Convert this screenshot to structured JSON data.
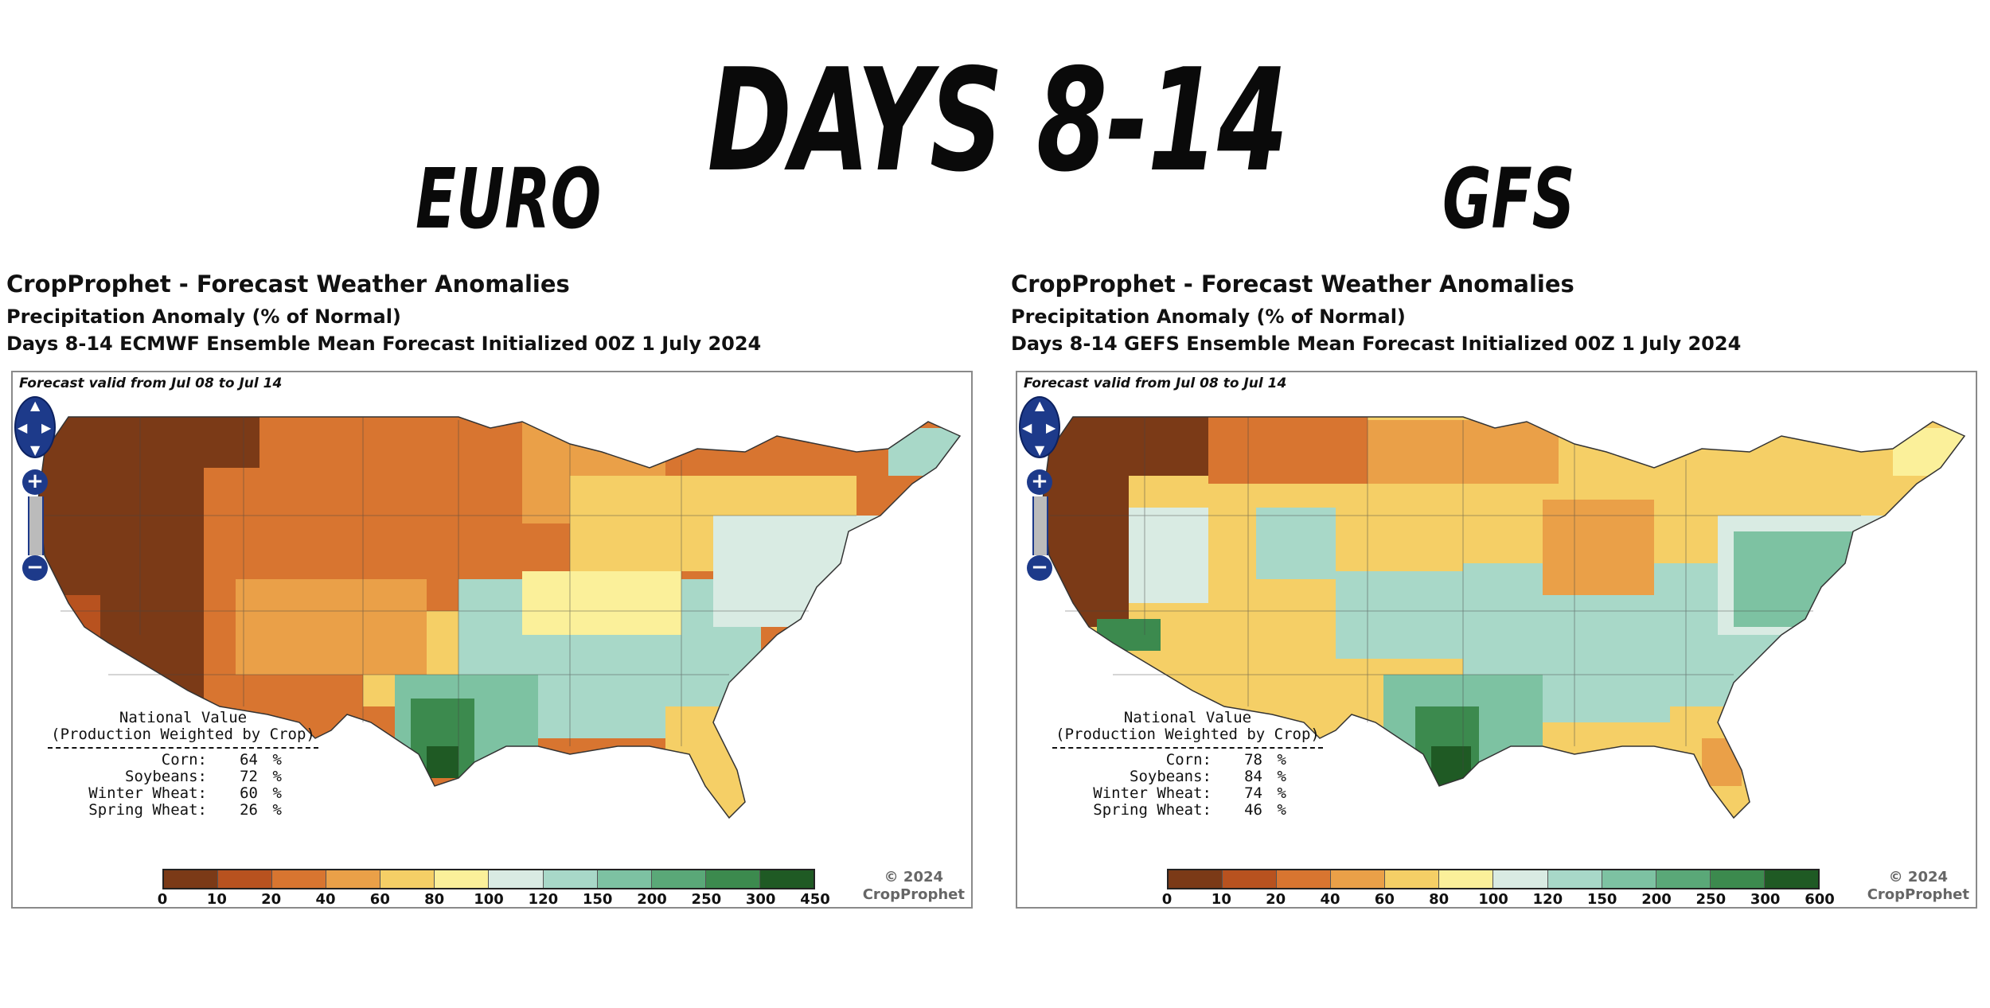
{
  "headline": "DAYS 8-14",
  "labels": {
    "left": "EURO",
    "right": "GFS"
  },
  "colors": {
    "scale": [
      "#7b3a17",
      "#b8521f",
      "#d87530",
      "#eaa048",
      "#f5cf66",
      "#fbf09a",
      "#d9ebe3",
      "#a8d8c8",
      "#7dc2a2",
      "#5aa878",
      "#3c8a4e",
      "#1f5a24"
    ]
  },
  "panels": [
    {
      "id": "euro",
      "title": "CropProphet - Forecast Weather Anomalies",
      "subtitle": "Precipitation Anomaly (% of Normal)",
      "forecast_line": "Days 8-14 ECMWF Ensemble Mean Forecast Initialized 00Z 1 July 2024",
      "valid": "Forecast valid from Jul 08 to Jul 14",
      "national": {
        "title": "National Value",
        "subtitle": "(Production Weighted by Crop)",
        "rows": [
          {
            "crop": "Corn:",
            "value": "64",
            "unit": "%"
          },
          {
            "crop": "Soybeans:",
            "value": "72",
            "unit": "%"
          },
          {
            "crop": "Winter Wheat:",
            "value": "60",
            "unit": "%"
          },
          {
            "crop": "Spring Wheat:",
            "value": "26",
            "unit": "%"
          }
        ]
      },
      "scale_ticks": [
        "0",
        "10",
        "20",
        "40",
        "60",
        "80",
        "100",
        "120",
        "150",
        "200",
        "250",
        "300",
        "450"
      ],
      "copyright": [
        "© 2024",
        "CropProphet"
      ]
    },
    {
      "id": "gfs",
      "title": "CropProphet - Forecast Weather Anomalies",
      "subtitle": "Precipitation Anomaly (% of Normal)",
      "forecast_line": "Days 8-14 GEFS Ensemble Mean Forecast Initialized 00Z 1 July 2024",
      "valid": "Forecast valid from Jul 08 to Jul 14",
      "national": {
        "title": "National Value",
        "subtitle": "(Production Weighted by Crop)",
        "rows": [
          {
            "crop": "Corn:",
            "value": "78",
            "unit": "%"
          },
          {
            "crop": "Soybeans:",
            "value": "84",
            "unit": "%"
          },
          {
            "crop": "Winter Wheat:",
            "value": "74",
            "unit": "%"
          },
          {
            "crop": "Spring Wheat:",
            "value": "46",
            "unit": "%"
          }
        ]
      },
      "scale_ticks": [
        "0",
        "10",
        "20",
        "40",
        "60",
        "80",
        "100",
        "120",
        "150",
        "200",
        "250",
        "300",
        "600"
      ],
      "copyright": [
        "© 2024",
        "CropProphet"
      ]
    }
  ]
}
